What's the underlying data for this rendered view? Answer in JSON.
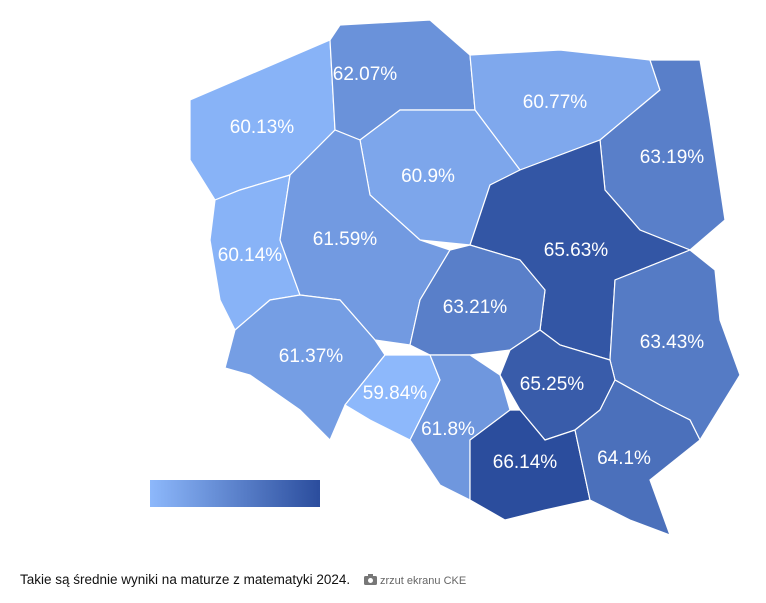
{
  "chart_data": {
    "type": "choropleth",
    "values": [
      60.13,
      62.07,
      60.77,
      63.19,
      60.9,
      60.14,
      61.59,
      65.63,
      63.21,
      63.43,
      61.37,
      59.84,
      61.8,
      65.25,
      66.14,
      64.1
    ],
    "value_labels": [
      "60.13%",
      "62.07%",
      "60.77%",
      "63.19%",
      "60.9%",
      "60.14%",
      "61.59%",
      "65.63%",
      "63.21%",
      "63.43%",
      "61.37%",
      "59.84%",
      "61.8%",
      "65.25%",
      "66.14%",
      "64.1%"
    ],
    "colorscale": [
      "#8db8fb",
      "#2b4d9d"
    ]
  },
  "caption": "Takie są średnie wyniki na maturze z matematyki 2024.",
  "credit": "zrzut ekranu CKE"
}
